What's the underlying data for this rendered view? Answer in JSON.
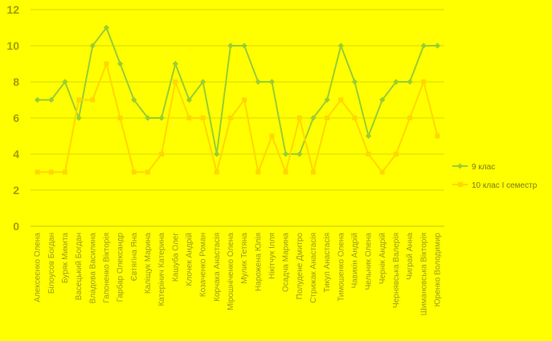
{
  "chart_data": {
    "type": "line",
    "title": "",
    "xlabel": "",
    "ylabel": "",
    "ylim": [
      0,
      12
    ],
    "yticks": [
      0,
      2,
      4,
      6,
      8,
      10,
      12
    ],
    "grid": true,
    "legend_position": "right",
    "categories": [
      "Алексеєнко Олена",
      "Білоусов Богдан",
      "Буряк Микита",
      "Васецький Богдан",
      "Владова Василина",
      "Гапоненко Вікторія",
      "Гарбар Олександр",
      "Євтягіна Яна",
      "Каліщук Марина",
      "Катерінич Катерина",
      "Кашуба Олег",
      "Клочек Андрій",
      "Козаченко Роман",
      "Корчака Анастасія",
      "Мірошніченко Олена",
      "Мулик Тетяна",
      "Нарожена Юлія",
      "Нікітчук Ілля",
      "Осадча Марина",
      "Полудене Дмитро",
      "Стрижак Анастасія",
      "Тикул Анастасія",
      "Тимошенко Олена",
      "Чавикін Андрій",
      "Чельник Олена",
      "Чернік Андрій",
      "Чернявська Валерія",
      "Чиграй Анна",
      "Шимановська Вікторія",
      "Юренко Володимир"
    ],
    "series": [
      {
        "name": "9 клас",
        "color": "#9acd32",
        "marker": "diamond",
        "values": [
          7,
          7,
          8,
          6,
          10,
          11,
          9,
          7,
          6,
          6,
          9,
          7,
          8,
          4,
          10,
          10,
          8,
          8,
          4,
          4,
          6,
          7,
          10,
          8,
          5,
          7,
          8,
          8,
          10,
          10
        ]
      },
      {
        "name": "10 клас І семестр",
        "color": "#ffd700",
        "marker": "square",
        "values": [
          3,
          3,
          3,
          7,
          7,
          9,
          6,
          3,
          3,
          4,
          8,
          6,
          6,
          3,
          6,
          7,
          3,
          5,
          3,
          6,
          3,
          6,
          7,
          6,
          4,
          3,
          4,
          6,
          8,
          5
        ]
      }
    ]
  }
}
